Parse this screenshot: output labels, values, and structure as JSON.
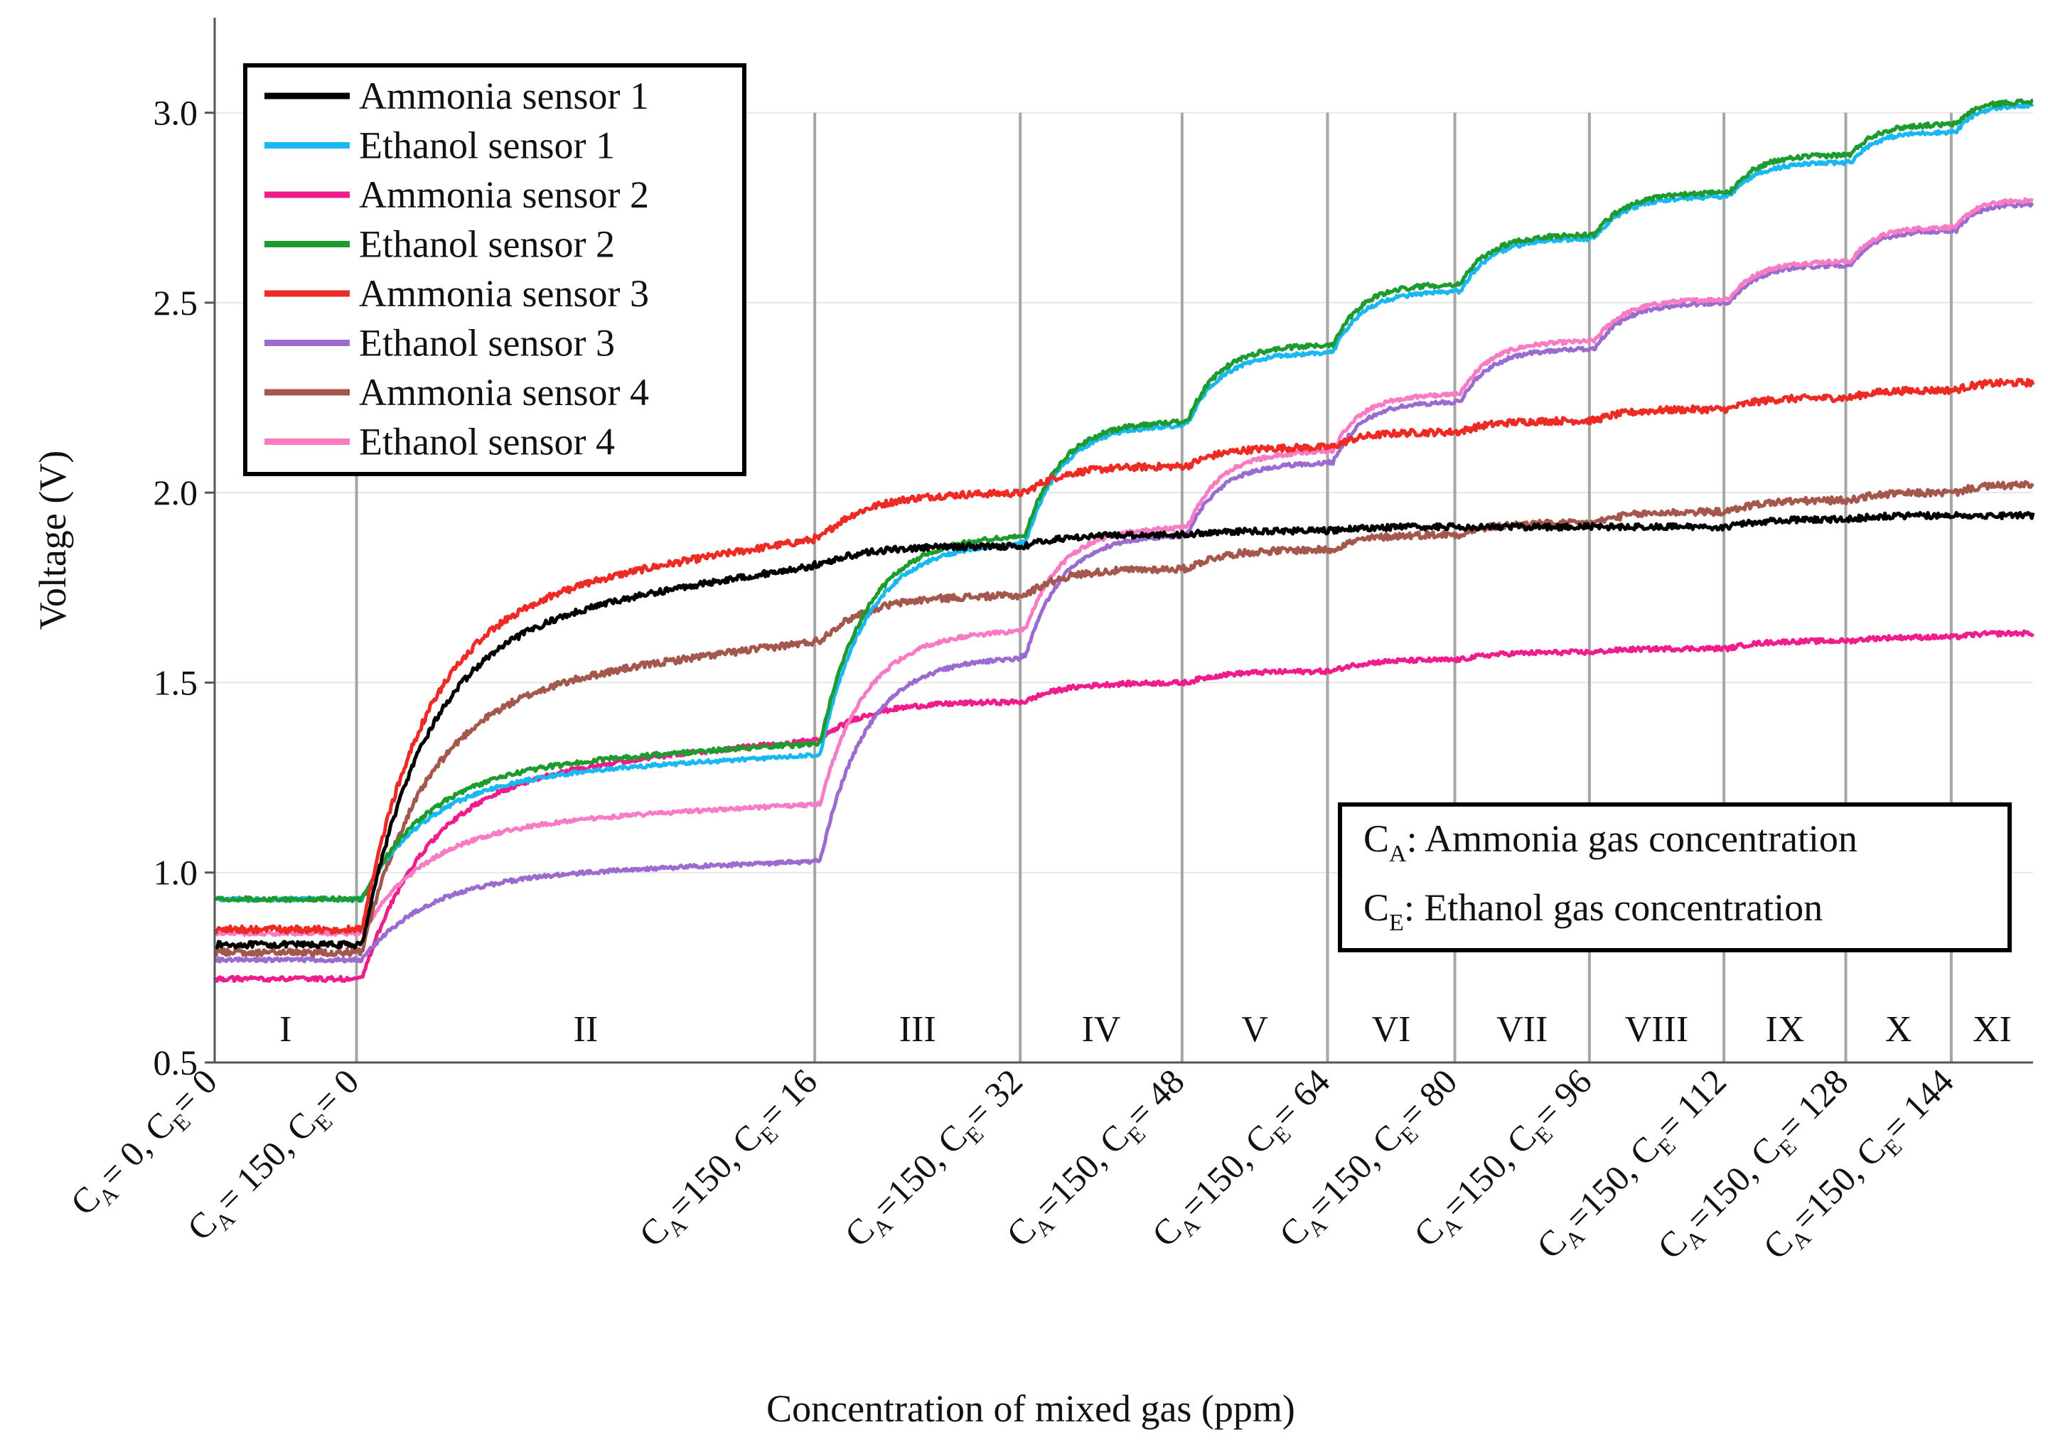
{
  "chart_data": {
    "type": "line",
    "title": "",
    "xlabel": "Concentration of mixed gas (ppm)",
    "ylabel": "Voltage (V)",
    "ylim": [
      0.5,
      3.25
    ],
    "yticks": [
      "0.5",
      "1.0",
      "1.5",
      "2.0",
      "2.5",
      "3.0"
    ],
    "grid": "horizontal light grid, vertical dividers at step changes",
    "x_units": "relative time across 11 regions",
    "boundaries": [
      0,
      0.078,
      0.33,
      0.443,
      0.532,
      0.612,
      0.682,
      0.756,
      0.83,
      0.897,
      0.955,
      1.0
    ],
    "regions": [
      "I",
      "II",
      "III",
      "IV",
      "V",
      "VI",
      "VII",
      "VIII",
      "IX",
      "X",
      "XI"
    ],
    "x_tick_labels": [
      {
        "a": "C",
        "as": "A",
        "av": "= 0, ",
        "e": "C",
        "es": "E",
        "ev": "= 0"
      },
      {
        "a": "C",
        "as": "A",
        "av": "= 150, ",
        "e": "C",
        "es": "E",
        "ev": "= 0"
      },
      {
        "a": "C",
        "as": "A",
        "av": "=150, ",
        "e": "C",
        "es": "E",
        "ev": "= 16"
      },
      {
        "a": "C",
        "as": "A",
        "av": "=150, ",
        "e": "C",
        "es": "E",
        "ev": "= 32"
      },
      {
        "a": "C",
        "as": "A",
        "av": "=150, ",
        "e": "C",
        "es": "E",
        "ev": "= 48"
      },
      {
        "a": "C",
        "as": "A",
        "av": "=150, ",
        "e": "C",
        "es": "E",
        "ev": "= 64"
      },
      {
        "a": "C",
        "as": "A",
        "av": "=150, ",
        "e": "C",
        "es": "E",
        "ev": "= 80"
      },
      {
        "a": "C",
        "as": "A",
        "av": "=150, ",
        "e": "C",
        "es": "E",
        "ev": "= 96"
      },
      {
        "a": "C",
        "as": "A",
        "av": "=150, ",
        "e": "C",
        "es": "E",
        "ev": "= 112"
      },
      {
        "a": "C",
        "as": "A",
        "av": "=150, ",
        "e": "C",
        "es": "E",
        "ev": "= 128"
      },
      {
        "a": "C",
        "as": "A",
        "av": "=150, ",
        "e": "C",
        "es": "E",
        "ev": "= 144"
      }
    ],
    "legend_position": "top-left",
    "series": [
      {
        "name": "Ammonia sensor 1",
        "color": "#000000",
        "noise": 0.008,
        "levels": [
          0.81,
          1.81,
          1.86,
          1.89,
          1.9,
          1.91,
          1.91,
          1.91,
          1.93,
          1.94,
          1.94
        ]
      },
      {
        "name": "Ethanol sensor 1",
        "color": "#1ab8f0",
        "noise": 0.005,
        "levels": [
          0.93,
          1.31,
          1.87,
          2.18,
          2.37,
          2.53,
          2.67,
          2.78,
          2.87,
          2.95,
          3.02
        ]
      },
      {
        "name": "Ammonia sensor 2",
        "color": "#ef1c8c",
        "noise": 0.006,
        "levels": [
          0.72,
          1.35,
          1.45,
          1.5,
          1.53,
          1.56,
          1.58,
          1.59,
          1.61,
          1.62,
          1.63
        ]
      },
      {
        "name": "Ethanol sensor 2",
        "color": "#1e9b2e",
        "noise": 0.006,
        "levels": [
          0.93,
          1.34,
          1.89,
          2.19,
          2.39,
          2.55,
          2.68,
          2.79,
          2.89,
          2.97,
          3.03
        ]
      },
      {
        "name": "Ammonia sensor 3",
        "color": "#ee2a24",
        "noise": 0.009,
        "levels": [
          0.85,
          1.88,
          2.0,
          2.07,
          2.12,
          2.16,
          2.19,
          2.22,
          2.25,
          2.27,
          2.29
        ]
      },
      {
        "name": "Ethanol sensor 3",
        "color": "#9b6bcf",
        "noise": 0.005,
        "levels": [
          0.77,
          1.03,
          1.57,
          1.89,
          2.08,
          2.24,
          2.38,
          2.5,
          2.6,
          2.69,
          2.76
        ]
      },
      {
        "name": "Ammonia sensor 4",
        "color": "#a4574c",
        "noise": 0.009,
        "levels": [
          0.79,
          1.61,
          1.73,
          1.8,
          1.85,
          1.89,
          1.92,
          1.95,
          1.98,
          2.0,
          2.02
        ]
      },
      {
        "name": "Ethanol sensor 4",
        "color": "#f87bc4",
        "noise": 0.005,
        "levels": [
          0.84,
          1.18,
          1.64,
          1.91,
          2.11,
          2.26,
          2.4,
          2.51,
          2.61,
          2.7,
          2.77
        ]
      }
    ],
    "annotation": {
      "line1": {
        "c": "C",
        "sub": "A",
        "text": ": Ammonia gas concentration"
      },
      "line2": {
        "c": "C",
        "sub": "E",
        "text": ": Ethanol gas concentration"
      }
    }
  }
}
